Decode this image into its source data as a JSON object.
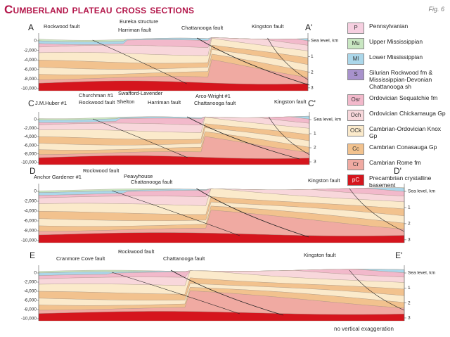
{
  "header": {
    "title": "Cumberland plateau cross sections",
    "figure": "Fig. 6"
  },
  "depth_ticks": [
    "0",
    "-2,000",
    "-4,000",
    "-6,000",
    "-8,000",
    "-10,000"
  ],
  "km_ticks": [
    "Sea level, km",
    "1",
    "2",
    "3"
  ],
  "sections": [
    {
      "start": "A",
      "end": "A'",
      "labels": [
        "Rockwood fault",
        "Eureka structure",
        "Harriman fault",
        "Chattanooga fault",
        "Kingston fault"
      ]
    },
    {
      "start": "C",
      "end": "C'",
      "labels": [
        "J.M.Huber #1",
        "Churchman #1",
        "Rockwood fault",
        "Swafford-Lavender",
        "Shelton",
        "Harriman fault",
        "Arco-Wright #1",
        "Chattanooga fault",
        "Kingston fault"
      ]
    },
    {
      "start": "D",
      "end": "D'",
      "labels": [
        "Anchor Gardener #1",
        "Rockwood fault",
        "Peavyhouse",
        "Chattanooga fault",
        "Kingston fault"
      ]
    },
    {
      "start": "E",
      "end": "E'",
      "labels": [
        "Cranmore Cove fault",
        "Rockwood fault",
        "Chattanooga fault",
        "Kingston fault"
      ]
    }
  ],
  "legend": [
    {
      "code": "P",
      "name": "Pennsylvanian",
      "color": "#f6cfe0"
    },
    {
      "code": "Mu",
      "name": "Upper Mississippian",
      "color": "#c9e7c2"
    },
    {
      "code": "Ml",
      "name": "Lower Mississippian",
      "color": "#abd7ea"
    },
    {
      "code": "S",
      "name": "Silurian Rockwood fm & Mississippian-Devonian Chattanooga sh",
      "color": "#a892cc"
    },
    {
      "code": "Osr",
      "name": "Ordovician Sequatchie fm",
      "color": "#f2b9cb"
    },
    {
      "code": "Och",
      "name": "Ordovician Chickamauga Gp",
      "color": "#f8d7db"
    },
    {
      "code": "OCk",
      "name": "Cambrian-Ordovician Knox Gp",
      "color": "#fbeacb"
    },
    {
      "code": "Cc",
      "name": "Cambrian Conasauga Gp",
      "color": "#f2c28e"
    },
    {
      "code": "Cr",
      "name": "Cambrian Rome fm",
      "color": "#f0aaa2"
    },
    {
      "code": "pC",
      "name": "Precambrian crystalline basement",
      "color": "#d5151d"
    }
  ],
  "note": "no vertical exaggeration"
}
